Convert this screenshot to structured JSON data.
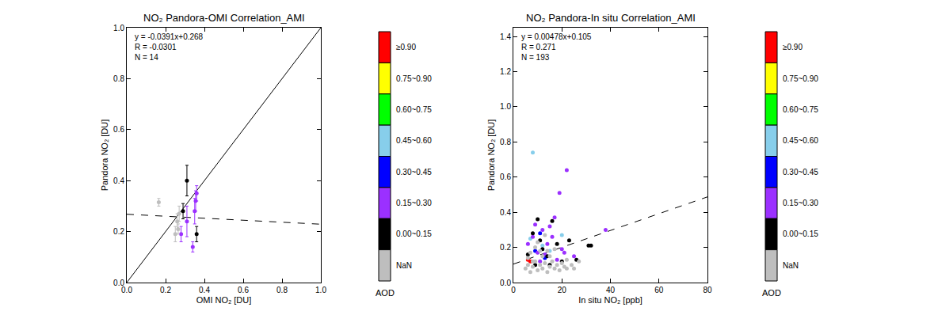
{
  "chart_data": [
    {
      "type": "scatter",
      "title": "NO₂ Pandora-OMI Correlation_AMI",
      "x_label": "OMI NO₂ [DU]",
      "y_label": "Pandora NO₂ [DU]",
      "annotations": [
        "y = -0.0391x+0.268",
        "R = -0.0301",
        "N = 14"
      ],
      "xlim": [
        0,
        1
      ],
      "ylim": [
        0,
        1
      ],
      "xticks": [
        {
          "value": 0,
          "label": "0.0"
        },
        0.2,
        0.4,
        0.6,
        0.8,
        {
          "value": 1,
          "label": "1.0"
        }
      ],
      "yticks": [
        {
          "value": 0,
          "label": "0.0"
        },
        0.2,
        0.4,
        0.6,
        0.8,
        {
          "value": 1,
          "label": "1.0"
        }
      ],
      "reference_line": {
        "x": [
          0,
          1
        ],
        "y": [
          0,
          1
        ],
        "line_style": "solid"
      },
      "fit": {
        "slope": -0.0391,
        "intercept": 0.268,
        "line_style": "dashed"
      },
      "colorbar_title": "AOD",
      "series": [
        {
          "name": "≥0.90",
          "color": "#ff0000",
          "x": [],
          "y": [],
          "error": []
        },
        {
          "name": "0.75~0.90",
          "color": "#ffff00",
          "x": [],
          "y": [],
          "error": []
        },
        {
          "name": "0.60~0.75",
          "color": "#00ff00",
          "x": [],
          "y": [],
          "error": []
        },
        {
          "name": "0.45~0.60",
          "color": "#87ceeb",
          "x": [],
          "y": [],
          "error": []
        },
        {
          "name": "0.30~0.45",
          "color": "#0000ff",
          "x": [],
          "y": [],
          "error": []
        },
        {
          "name": "0.15~0.30",
          "color": "#9b30ff",
          "x": [
            0.28,
            0.31,
            0.34,
            0.35,
            0.355,
            0.36
          ],
          "y": [
            0.19,
            0.24,
            0.14,
            0.28,
            0.32,
            0.35
          ],
          "error": [
            0.03,
            0.06,
            0.02,
            0.05,
            0.04,
            0.03
          ]
        },
        {
          "name": "0.00~0.15",
          "color": "#000000",
          "x": [
            0.29,
            0.31,
            0.36
          ],
          "y": [
            0.28,
            0.4,
            0.19
          ],
          "error": [
            0.03,
            0.06,
            0.03
          ]
        },
        {
          "name": "NaN",
          "color": "#bebebe",
          "x": [
            0.165,
            0.25,
            0.26,
            0.265,
            0.27
          ],
          "y": [
            0.315,
            0.19,
            0.24,
            0.21,
            0.27
          ],
          "error": [
            0.015,
            0.03,
            0.03,
            0.02,
            0.03
          ]
        }
      ]
    },
    {
      "type": "scatter",
      "title": "NO₂ Pandora-In situ Correlation_AMI",
      "x_label": "In situ NO₂ [ppb]",
      "y_label": "Pandora NO₂ [DU]",
      "annotations": [
        "y = 0.00478x+0.105",
        "R = 0.271",
        "N = 193"
      ],
      "xlim": [
        0,
        80
      ],
      "ylim": [
        0,
        1.45
      ],
      "xticks": [
        0,
        20,
        40,
        60,
        80
      ],
      "yticks": [
        {
          "value": 0,
          "label": "0.0"
        },
        0.2,
        0.4,
        0.6,
        0.8,
        {
          "value": 1,
          "label": "1.0"
        },
        1.2,
        1.4
      ],
      "fit": {
        "slope": 0.00478,
        "intercept": 0.105,
        "line_style": "dashed"
      },
      "colorbar_title": "AOD",
      "series": [
        {
          "name": "≥0.90",
          "color": "#ff0000",
          "x": [
            6,
            7
          ],
          "y": [
            0.13,
            0.12
          ]
        },
        {
          "name": "0.75~0.90",
          "color": "#ffff00",
          "x": [],
          "y": []
        },
        {
          "name": "0.60~0.75",
          "color": "#00ff00",
          "x": [],
          "y": []
        },
        {
          "name": "0.45~0.60",
          "color": "#87ceeb",
          "x": [
            8,
            7,
            15,
            12,
            20
          ],
          "y": [
            0.74,
            0.25,
            0.18,
            0.21,
            0.27
          ]
        },
        {
          "name": "0.30~0.45",
          "color": "#0000ff",
          "x": [
            9,
            13,
            11
          ],
          "y": [
            0.18,
            0.14,
            0.28
          ]
        },
        {
          "name": "0.15~0.30",
          "color": "#9b30ff",
          "x": [
            22,
            19,
            38,
            17,
            9,
            12,
            14,
            10,
            16,
            20,
            6,
            18,
            25,
            11,
            8,
            15,
            21,
            13
          ],
          "y": [
            0.64,
            0.51,
            0.3,
            0.37,
            0.33,
            0.3,
            0.22,
            0.17,
            0.26,
            0.19,
            0.22,
            0.13,
            0.15,
            0.12,
            0.26,
            0.32,
            0.17,
            0.16
          ]
        },
        {
          "name": "0.00~0.15",
          "color": "#000000",
          "x": [
            31,
            32,
            10,
            16,
            8,
            12,
            14,
            6,
            20,
            23,
            18,
            9,
            11,
            26,
            15
          ],
          "y": [
            0.21,
            0.21,
            0.36,
            0.35,
            0.28,
            0.19,
            0.15,
            0.16,
            0.12,
            0.24,
            0.22,
            0.1,
            0.24,
            0.13,
            0.1
          ]
        },
        {
          "name": "NaN",
          "color": "#bebebe",
          "x": [
            5,
            6,
            7,
            8,
            9,
            10,
            11,
            12,
            13,
            14,
            15,
            16,
            17,
            18,
            19,
            20,
            21,
            22,
            24,
            7,
            9,
            12,
            14,
            6,
            10,
            8,
            11,
            13,
            15,
            17,
            25,
            27,
            22
          ],
          "y": [
            0.08,
            0.1,
            0.06,
            0.09,
            0.12,
            0.07,
            0.1,
            0.08,
            0.11,
            0.06,
            0.09,
            0.12,
            0.08,
            0.1,
            0.07,
            0.11,
            0.09,
            0.13,
            0.1,
            0.17,
            0.2,
            0.15,
            0.18,
            0.14,
            0.23,
            0.12,
            0.18,
            0.27,
            0.15,
            0.19,
            0.08,
            0.12,
            0.08
          ]
        }
      ]
    }
  ]
}
